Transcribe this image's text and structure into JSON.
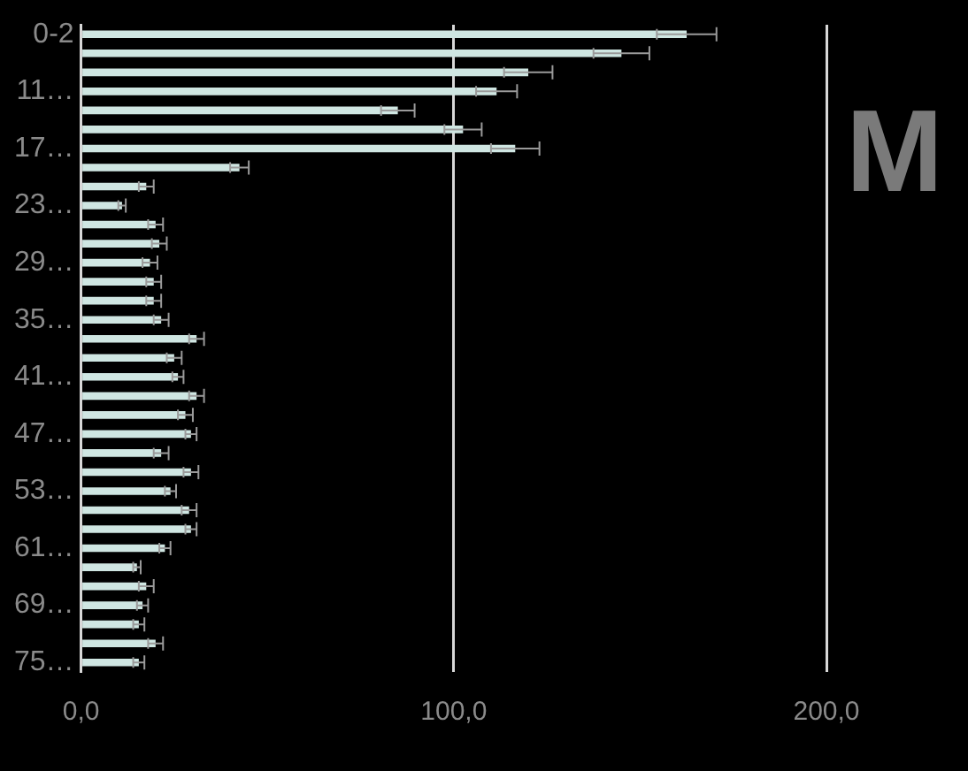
{
  "chart_data": {
    "type": "bar",
    "orientation": "horizontal",
    "categories": [
      "0-2",
      null,
      null,
      "11…",
      null,
      null,
      "17…",
      null,
      null,
      "23…",
      null,
      null,
      "29…",
      null,
      null,
      "35…",
      null,
      null,
      "41…",
      null,
      null,
      "47…",
      null,
      null,
      "53…",
      null,
      null,
      "61…",
      null,
      null,
      "69…",
      null,
      null,
      "75…"
    ],
    "values": [
      162.5,
      145,
      120,
      111.5,
      85,
      102.5,
      116.5,
      42.5,
      17.5,
      11,
      20,
      21,
      18.5,
      19.5,
      19.5,
      21.5,
      31,
      25,
      26,
      31,
      28,
      29.5,
      21.5,
      29.5,
      24,
      29,
      29.5,
      22.5,
      15,
      17.5,
      16.5,
      15.5,
      20,
      15.5
    ],
    "errors": [
      8,
      7.5,
      6.5,
      5.5,
      4.5,
      5,
      6.5,
      2.5,
      2,
      1,
      2,
      2,
      2,
      2,
      2,
      2,
      2,
      2,
      1.5,
      2,
      2,
      1.5,
      2,
      2,
      1.5,
      2,
      1.5,
      1.5,
      1,
      2,
      1.5,
      1.5,
      2,
      1.5
    ],
    "color": "#cfe6e2",
    "xlim": [
      0,
      200
    ],
    "xticks": [
      {
        "value": 0,
        "label": "0,0"
      },
      {
        "value": 100,
        "label": "100,0"
      },
      {
        "value": 200,
        "label": "200,0"
      }
    ],
    "grid": "x",
    "annotations": [
      "M"
    ]
  }
}
